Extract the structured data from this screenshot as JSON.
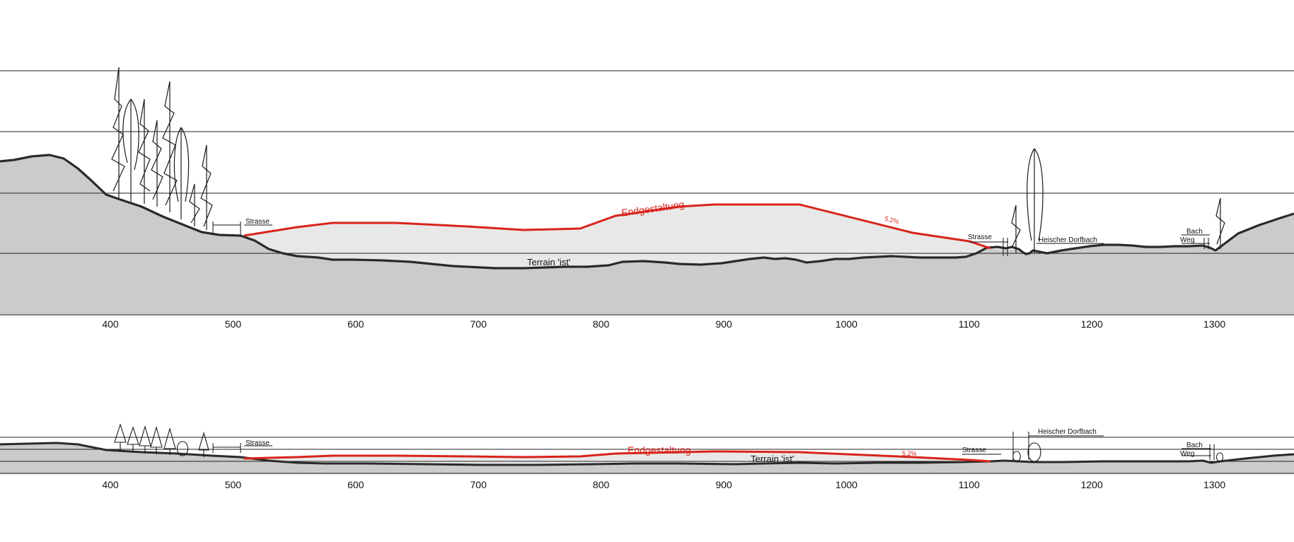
{
  "colors": {
    "terrain_fill": "#cbcbcc",
    "fill_area": "#e8e8e8",
    "terrain_line": "#2a2a2a",
    "endgestaltung": "#d8231c",
    "grid": "#222222"
  },
  "top_section": {
    "label_endgestaltung": "Endgestaltung",
    "label_terrain": "Terrain 'ist'",
    "label_slope": "5.2%",
    "label_strasse_left": "Strasse",
    "label_strasse_right": "Strasse",
    "label_dorfbach": "Heischer Dorfbach",
    "label_bach": "Bach",
    "label_weg": "Weg"
  },
  "bottom_section": {
    "label_endgestaltung": "Endgestaltung",
    "label_terrain": "Terrain 'ist'",
    "label_slope": "5.2%",
    "label_strasse_left": "Strasse",
    "label_strasse_right": "Strasse",
    "label_dorfbach": "Heischer Dorfbach",
    "label_bach": "Bach",
    "label_weg": "Weg"
  },
  "axis_ticks": [
    "400",
    "500",
    "600",
    "700",
    "800",
    "900",
    "1000",
    "1100",
    "1200",
    "1300"
  ]
}
